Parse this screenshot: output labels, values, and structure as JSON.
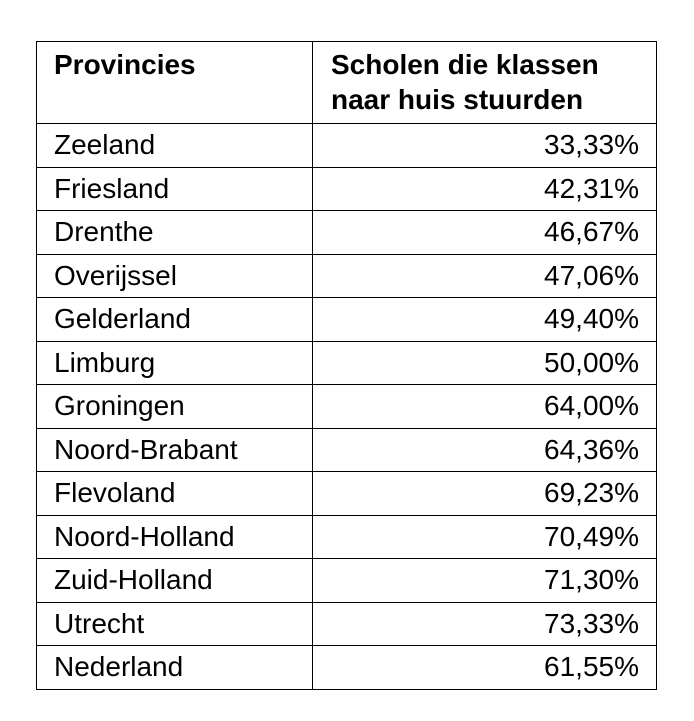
{
  "table": {
    "headers": [
      "Provincies",
      "Scholen die klassen naar huis stuurden"
    ],
    "rows": [
      [
        "Zeeland",
        "33,33%"
      ],
      [
        "Friesland",
        "42,31%"
      ],
      [
        "Drenthe",
        "46,67%"
      ],
      [
        "Overijssel",
        "47,06%"
      ],
      [
        "Gelderland",
        "49,40%"
      ],
      [
        "Limburg",
        "50,00%"
      ],
      [
        "Groningen",
        "64,00%"
      ],
      [
        "Noord-Brabant",
        "64,36%"
      ],
      [
        "Flevoland",
        "69,23%"
      ],
      [
        "Noord-Holland",
        "70,49%"
      ],
      [
        "Zuid-Holland",
        "71,30%"
      ],
      [
        "Utrecht",
        "73,33%"
      ],
      [
        "Nederland",
        "61,55%"
      ]
    ]
  }
}
